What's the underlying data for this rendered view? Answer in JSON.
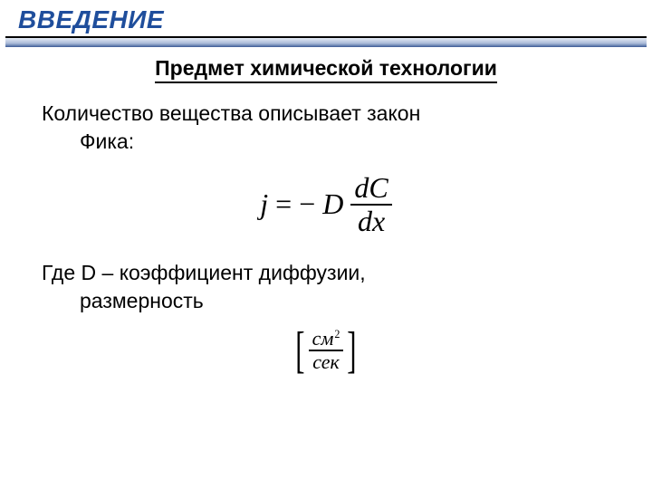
{
  "colors": {
    "title": "#1f4e9c",
    "rule": "#000000",
    "band_top": "#e6ecf5",
    "band_mid": "#a8b9d8",
    "band_bot": "#3b5a96",
    "text": "#000000",
    "bg": "#ffffff"
  },
  "typography": {
    "body_family": "Verdana",
    "math_family": "Times New Roman",
    "title_size_pt": 21,
    "subtitle_size_pt": 17,
    "body_size_pt": 17,
    "formula_size_pt": 24
  },
  "title": "ВВЕДЕНИЕ",
  "subtitle": "Предмет химической технологии",
  "para1_line1": "Количество вещества описывает закон",
  "para1_line2": "Фика:",
  "formula1": {
    "lhs": "j",
    "eq": "=",
    "sign": "−",
    "coef": "D",
    "num": "dC",
    "den": "dx"
  },
  "para2_line1": "Где D – коэффициент диффузии,",
  "para2_line2": "размерность",
  "formula2": {
    "num_base": "см",
    "num_exp": "2",
    "den": "сек"
  }
}
